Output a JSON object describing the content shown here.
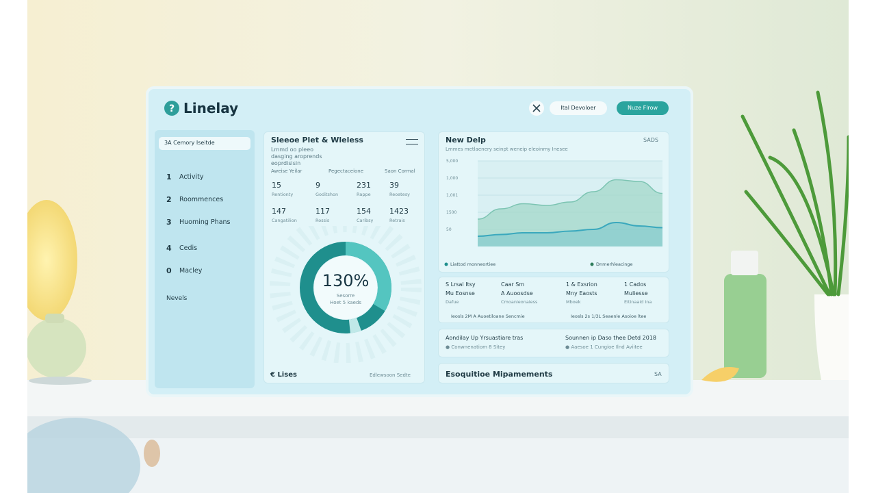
{
  "header": {
    "logo": "Linelay",
    "buttons": [
      "Ital Devoloer",
      "Nuze Flrow"
    ]
  },
  "sidebar": {
    "search": "3A Cemory Iseitde",
    "nav": [
      {
        "num": "1",
        "label": "Activity"
      },
      {
        "num": "2",
        "label": "Roommences"
      },
      {
        "num": "3",
        "label": "Huoming Phans"
      },
      {
        "num": "4",
        "label": "Cedis"
      },
      {
        "num": "0",
        "label": "Macley"
      }
    ],
    "footer": "Nevels"
  },
  "stats_panel": {
    "title": "Sleeoe Plet & Wleless",
    "subtitle": "Lmmd oo pleeo dasging aroprends eoprdisisin",
    "columns": [
      "Aweise Yeilar",
      "Pegectaceione",
      "Saon Cormal"
    ],
    "stats": [
      {
        "value": 15,
        "label": "Rentionty"
      },
      {
        "value": 9,
        "label": "Goditshon"
      },
      {
        "value": 231,
        "label": "Rappe"
      },
      {
        "value": 39,
        "label": "Reoatesy"
      },
      {
        "value": 147,
        "label": "Cangatilion"
      },
      {
        "value": 117,
        "label": "Rossis"
      },
      {
        "value": 154,
        "label": "Caribsy"
      },
      {
        "value": 1423,
        "label": "Retrais"
      }
    ],
    "donut": {
      "value": "130%",
      "label": "Sesorre",
      "sublabel": "Hoet 5 kaeds"
    },
    "footer_left": "€ Lises",
    "footer_right": "Edlewsoon Sedte"
  },
  "chart_panel": {
    "title": "New Delp",
    "badge": "SADS",
    "subtitle": "Lmmes metlaenery seinpt weneip eleoinmy Inesee",
    "chart": {
      "type": "area",
      "ylim": [
        0,
        5
      ],
      "yticks": [
        {
          "value": 1,
          "label": "50"
        },
        {
          "value": 2,
          "label": "1500"
        },
        {
          "value": 3,
          "label": "1,001"
        },
        {
          "value": 4,
          "label": "1,000"
        },
        {
          "value": 5,
          "label": "5,000"
        }
      ],
      "series": [
        {
          "name": "Liattod monneortiee",
          "color": "#9fd6c6",
          "values": [
            1.6,
            2.2,
            2.5,
            2.4,
            2.6,
            3.2,
            3.9,
            3.8,
            3.1
          ]
        },
        {
          "name": "Dnmerhleacinge",
          "color": "#5cb9c9",
          "values": [
            0.6,
            0.7,
            0.8,
            0.8,
            0.9,
            1.0,
            1.4,
            1.2,
            1.1
          ]
        }
      ]
    }
  },
  "info_panel": {
    "items": [
      {
        "title": "S Lrsal Itsy",
        "line1": "Mu Eosnse",
        "line2": "Dafue"
      },
      {
        "title": "Caar Sm",
        "line1": "A Auoosdse",
        "line2": "Cmoanieonaiess"
      },
      {
        "title": "1 & Exsrion",
        "line1": "Mny Eaosts",
        "line2": "Mboek"
      },
      {
        "title": "1 Cados",
        "line1": "Muliesse",
        "line2": "Eitinaaid Ina"
      }
    ],
    "notes": [
      "Ieosls 2M A Auoetiloane Sencmie",
      "Ieosls 2s 1/3L Seaenle Asoioe ltee"
    ]
  },
  "detail_panel": {
    "left_title": "Aondilay Up Yrsuastiare tras",
    "left_note": "Conwnenatiom 8 Sitey",
    "right_title": "Sounnen ip Daso thee Detd 2018",
    "right_note": "Aaesoe 1 Cungioe Ilnd Aviitee"
  },
  "requirements_panel": {
    "title": "Esoquitioe Mipamements",
    "badge": "SA"
  }
}
